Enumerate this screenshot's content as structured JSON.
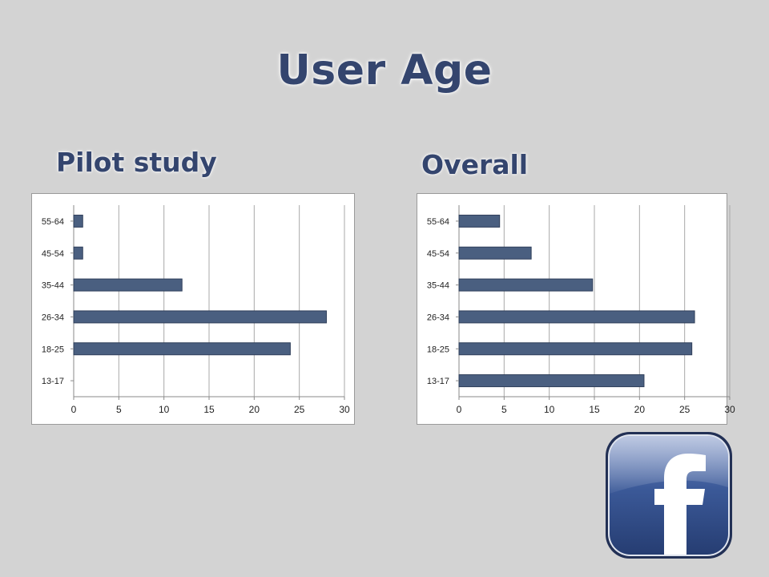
{
  "slide": {
    "title": "User Age"
  },
  "charts": {
    "pilot": {
      "heading": "Pilot study"
    },
    "overall": {
      "heading": "Overall"
    }
  },
  "colors": {
    "bar": "#4a5f80",
    "bar_edge": "#2f3f5a",
    "title": "#34456e",
    "background": "#d3d3d3",
    "logo_blue": "#3b5998"
  },
  "icons": {
    "logo": "facebook-logo-icon"
  },
  "chart_data": [
    {
      "type": "bar",
      "orientation": "horizontal",
      "title": "Pilot study",
      "categories": [
        "13-17",
        "18-25",
        "26-34",
        "35-44",
        "45-54",
        "55-64"
      ],
      "values": [
        0,
        24,
        28,
        12,
        1,
        1
      ],
      "xlim": [
        0,
        30
      ],
      "xticks": [
        0,
        5,
        10,
        15,
        20,
        25,
        30
      ],
      "grid": "vertical",
      "legend": "none"
    },
    {
      "type": "bar",
      "orientation": "horizontal",
      "title": "Overall",
      "categories": [
        "13-17",
        "18-25",
        "26-34",
        "35-44",
        "45-54",
        "55-64"
      ],
      "values": [
        20.5,
        25.8,
        26.1,
        14.8,
        8,
        4.5
      ],
      "xlim": [
        0,
        30
      ],
      "xticks": [
        0,
        5,
        10,
        15,
        20,
        25,
        30
      ],
      "grid": "vertical",
      "legend": "none"
    }
  ]
}
